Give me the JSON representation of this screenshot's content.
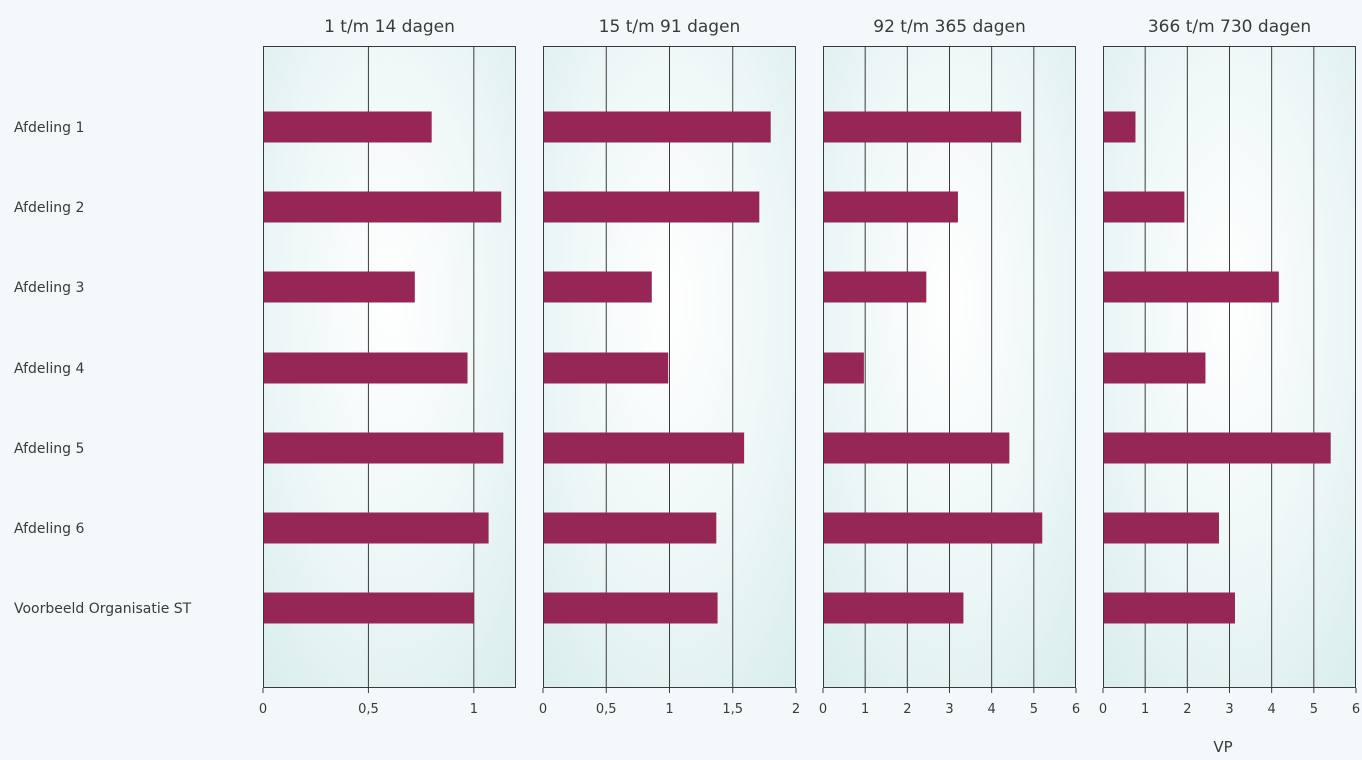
{
  "chart_data": {
    "type": "bar",
    "orientation": "horizontal",
    "categories": [
      "Afdeling 1",
      "Afdeling 2",
      "Afdeling 3",
      "Afdeling 4",
      "Afdeling 5",
      "Afdeling 6",
      "Voorbeeld Organisatie ST"
    ],
    "bar_color": "#952655",
    "xlabel": "VP",
    "panels": [
      {
        "title": "1 t/m 14 dagen",
        "xlim": [
          0,
          1.2
        ],
        "ticks": [
          0,
          0.5,
          1
        ],
        "tick_labels": [
          "0",
          "0,5",
          "1"
        ],
        "values": [
          0.8,
          1.13,
          0.72,
          0.97,
          1.14,
          1.07,
          1.0
        ]
      },
      {
        "title": "15 t/m 91 dagen",
        "xlim": [
          0,
          2
        ],
        "ticks": [
          0,
          0.5,
          1,
          1.5,
          2
        ],
        "tick_labels": [
          "0",
          "0,5",
          "1",
          "1,5",
          "2"
        ],
        "values": [
          1.8,
          1.71,
          0.86,
          0.99,
          1.59,
          1.37,
          1.38
        ]
      },
      {
        "title": "92 t/m 365 dagen",
        "xlim": [
          0,
          6
        ],
        "ticks": [
          0,
          1,
          2,
          3,
          4,
          5,
          6
        ],
        "tick_labels": [
          "0",
          "1",
          "2",
          "3",
          "4",
          "5",
          "6"
        ],
        "values": [
          4.7,
          3.2,
          2.45,
          0.97,
          4.42,
          5.2,
          3.33
        ]
      },
      {
        "title": "366 t/m 730 dagen",
        "xlim": [
          0,
          6
        ],
        "ticks": [
          0,
          1,
          2,
          3,
          4,
          5,
          6
        ],
        "tick_labels": [
          "0",
          "1",
          "2",
          "3",
          "4",
          "5",
          "6"
        ],
        "values": [
          0.77,
          1.93,
          4.17,
          2.43,
          5.4,
          2.75,
          3.13
        ]
      }
    ]
  }
}
